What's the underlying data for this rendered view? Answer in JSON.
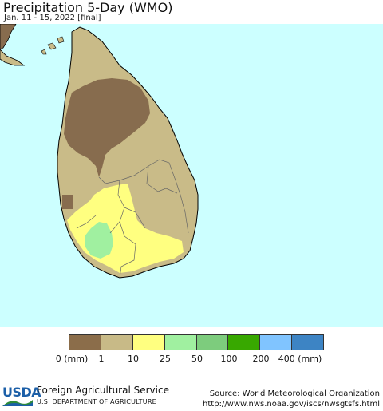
{
  "header": {
    "title": "Precipitation 5-Day (WMO)",
    "subtitle": "Jan. 11 - 15, 2022 [final]"
  },
  "map": {
    "region": "Sri Lanka",
    "water_color": "#ccffff",
    "dry_color": "#c9bb88",
    "driest_color": "#876c4e",
    "wet_color": "#ffff80",
    "wettest_color": "#a0f0a0"
  },
  "legend": {
    "colors": [
      "#8b6d4a",
      "#c8ba87",
      "#ffff80",
      "#a0f0a0",
      "#7dcc7d",
      "#38a800",
      "#80c4ff",
      "#3d84c4"
    ],
    "ticks": [
      "0 (mm)",
      "1",
      "10",
      "25",
      "50",
      "100",
      "200",
      "400 (mm)"
    ]
  },
  "footer": {
    "logo_text": "USDA",
    "agency": "Foreign Agricultural Service",
    "department": "U.S. DEPARTMENT OF AGRICULTURE",
    "source": "Source: World Meteorological Organization",
    "url": "http://www.nws.noaa.gov/iscs/nwsgtsfs.html"
  }
}
